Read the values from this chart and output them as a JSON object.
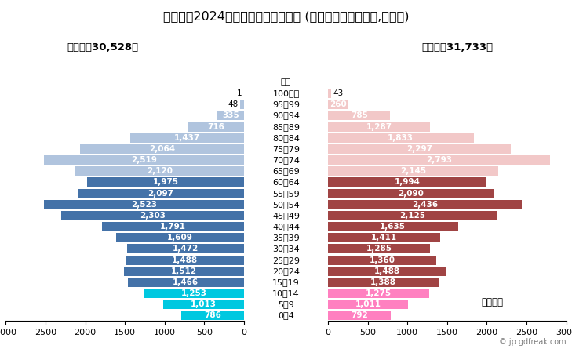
{
  "title": "藤岡市の2024年１月１日の人口構成 (住民基本台帳ベース,総人口)",
  "male_total_label": "男性計：30,528人",
  "female_total_label": "女性計：31,733人",
  "unit_label": "単位：人",
  "copyright_label": "© jp.gdfreak.com",
  "age_groups": [
    "不祥",
    "100歳～",
    "95～99",
    "90～94",
    "85～89",
    "80～84",
    "75～79",
    "70～74",
    "65～69",
    "60～64",
    "55～59",
    "50～54",
    "45～49",
    "40～44",
    "35～39",
    "30～34",
    "25～29",
    "20～24",
    "15～19",
    "10～14",
    "5～9",
    "0～4"
  ],
  "male_values": [
    0,
    1,
    48,
    335,
    716,
    1437,
    2064,
    2519,
    2120,
    1975,
    2097,
    2523,
    2303,
    1791,
    1609,
    1472,
    1488,
    1512,
    1466,
    1253,
    1013,
    786
  ],
  "female_values": [
    0,
    43,
    260,
    785,
    1287,
    1833,
    2297,
    2793,
    2145,
    1994,
    2090,
    2436,
    2125,
    1635,
    1411,
    1285,
    1360,
    1488,
    1388,
    1275,
    1011,
    792
  ],
  "male_color_old": "#b0c4de",
  "male_color_mid": "#4472a8",
  "male_color_young": "#00c8e0",
  "female_color_old": "#f2c8c8",
  "female_color_mid": "#a04444",
  "female_color_young": "#ff80c0",
  "background_color": "#ffffff",
  "title_fontsize": 11.5,
  "sublabel_fontsize": 9.5,
  "bar_label_fontsize": 7.5,
  "age_label_fontsize": 8,
  "tick_fontsize": 8,
  "xlim": 3000,
  "bar_height": 0.85
}
